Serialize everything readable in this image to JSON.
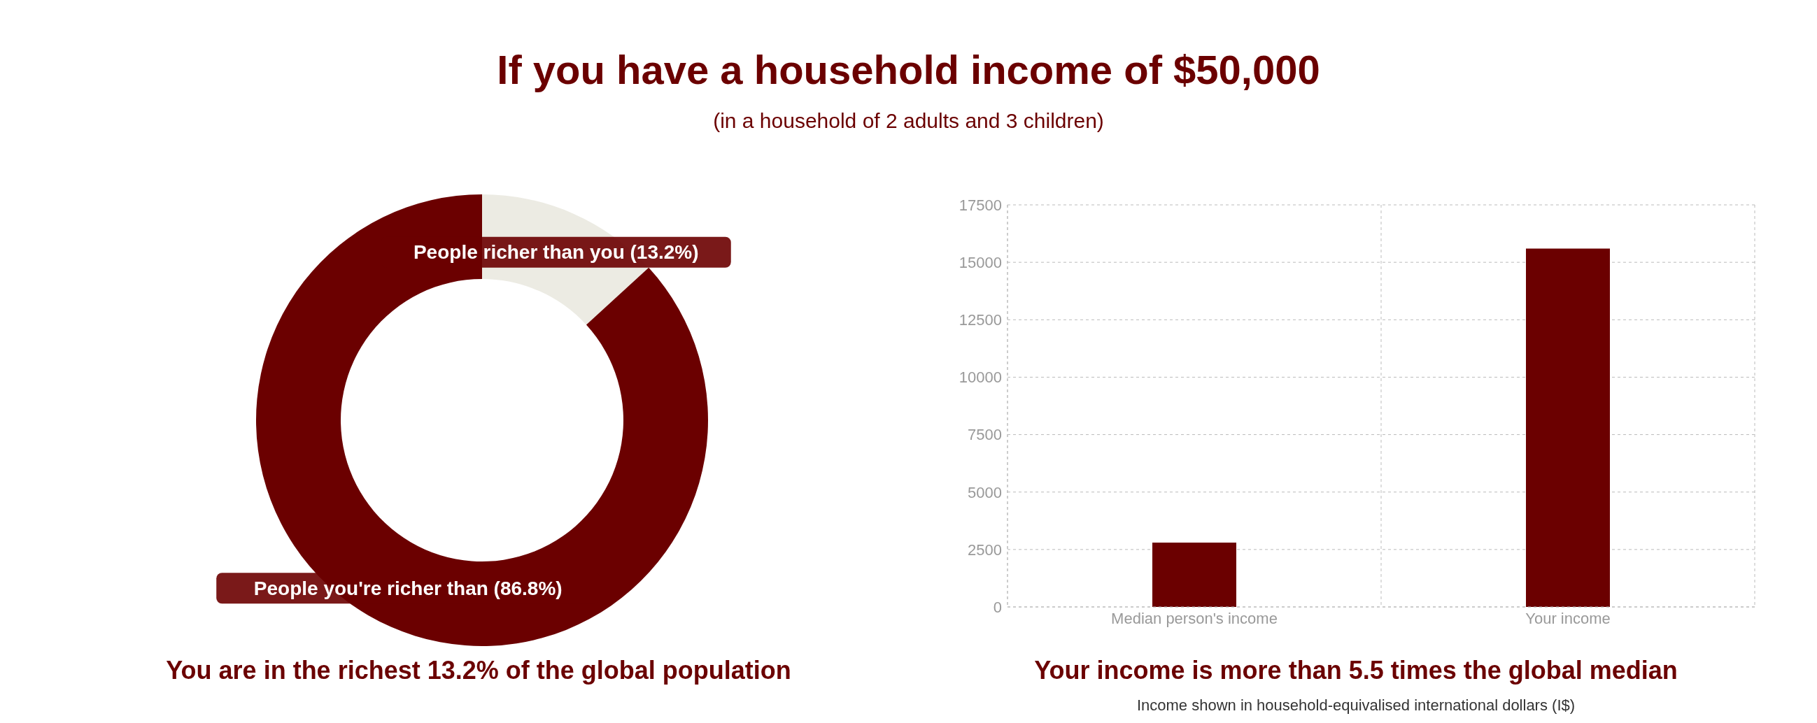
{
  "chart_data": [
    {
      "type": "donut",
      "title": "If you have a household income of $50,000",
      "subtitle": "(in a household of 2 adults and 3 children)",
      "categories": [
        "People richer than you (13.2%)",
        "People you're richer than (86.8%)"
      ],
      "values": [
        13.2,
        86.8
      ],
      "colors": [
        "#ecebe3",
        "#6b0000"
      ],
      "annotations": [
        "You are in the richest 13.2% of the global population"
      ],
      "legend": false
    },
    {
      "type": "bar",
      "categories": [
        "Median person's income",
        "Your income"
      ],
      "values": [
        2800,
        15600
      ],
      "color": "#6b0000",
      "ylim": [
        0,
        17500
      ],
      "yticks": [
        0,
        2500,
        5000,
        7500,
        10000,
        12500,
        15000,
        17500
      ],
      "grid": true,
      "legend": false,
      "annotations": [
        "Your income is more than 5.5 times the global median",
        "Income shown in household-equivalised international dollars (I$)"
      ]
    }
  ]
}
